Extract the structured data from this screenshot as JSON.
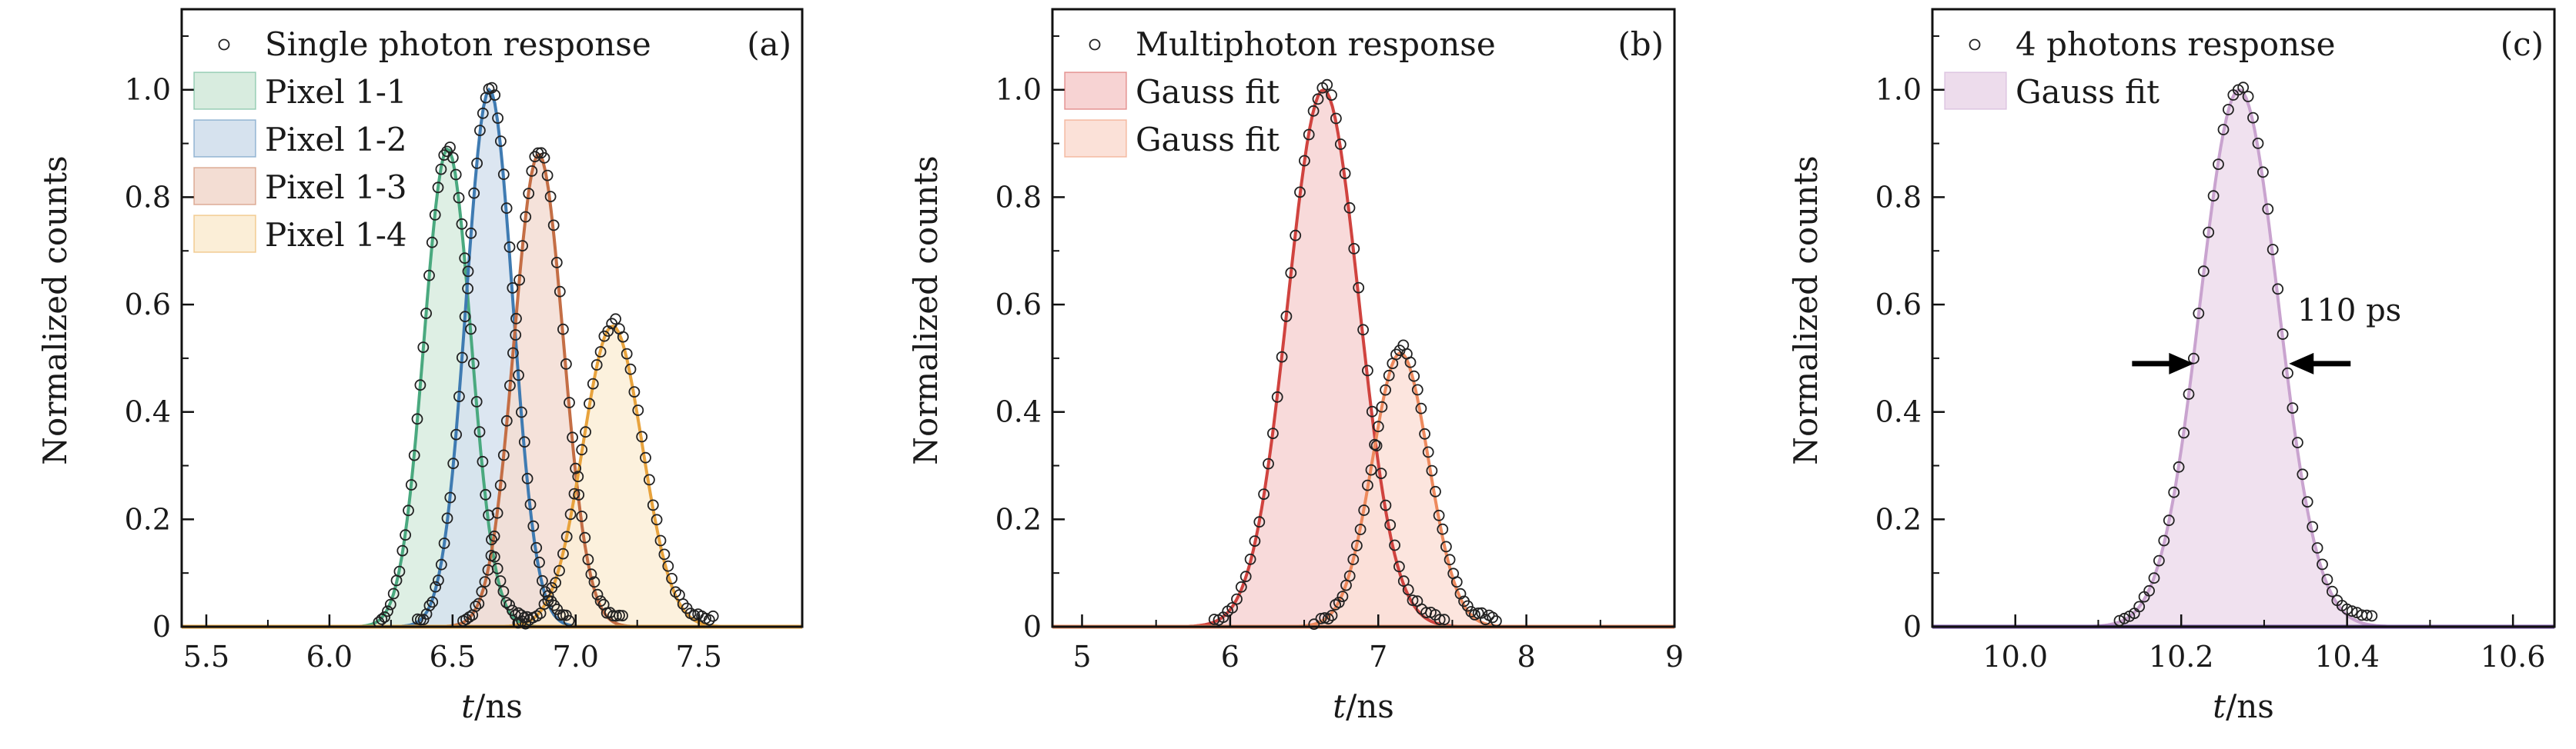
{
  "chart_data": [
    {
      "id": "a",
      "type": "area",
      "panel_label": "(a)",
      "xlabel_italic": "t",
      "xlabel_rest": "/ns",
      "ylabel": "Normalized counts",
      "xlim": [
        5.4,
        7.92
      ],
      "ylim": [
        0,
        1.15
      ],
      "xticks": [
        5.5,
        6.0,
        6.5,
        7.0,
        7.5
      ],
      "xtick_labels": [
        "5.5",
        "6.0",
        "6.5",
        "7.0",
        "7.5"
      ],
      "yticks": [
        0,
        0.2,
        0.4,
        0.6,
        0.8,
        1.0
      ],
      "ytick_labels": [
        "0",
        "0.2",
        "0.4",
        "0.6",
        "0.8",
        "1.0"
      ],
      "legend": [
        "Single photon response",
        "Pixel 1-1",
        "Pixel 1-2",
        "Pixel 1-3",
        "Pixel 1-4"
      ],
      "series": [
        {
          "name": "Pixel 1-1",
          "mu": 6.48,
          "sigma": 0.095,
          "amp": 0.89,
          "fill": "#d8ecdf",
          "line": "#4aa97f"
        },
        {
          "name": "Pixel 1-2",
          "mu": 6.65,
          "sigma": 0.095,
          "amp": 1.0,
          "fill": "#d6e2ee",
          "line": "#3f7bb2"
        },
        {
          "name": "Pixel 1-3",
          "mu": 6.85,
          "sigma": 0.1,
          "amp": 0.88,
          "fill": "#f3ddd3",
          "line": "#c46e45"
        },
        {
          "name": "Pixel 1-4",
          "mu": 7.15,
          "sigma": 0.12,
          "amp": 0.56,
          "fill": "#fbeed7",
          "line": "#e8a33d"
        }
      ],
      "points_series": "Single photon response",
      "baseline_color": "#e8a33d"
    },
    {
      "id": "b",
      "type": "area",
      "panel_label": "(b)",
      "xlabel_italic": "t",
      "xlabel_rest": "/ns",
      "ylabel": "Normalized counts",
      "xlim": [
        4.8,
        9.0
      ],
      "ylim": [
        0,
        1.15
      ],
      "xticks": [
        5,
        6,
        7,
        8,
        9
      ],
      "xtick_labels": [
        "5",
        "6",
        "7",
        "8",
        "9"
      ],
      "yticks": [
        0,
        0.2,
        0.4,
        0.6,
        0.8,
        1.0
      ],
      "ytick_labels": [
        "0",
        "0.2",
        "0.4",
        "0.6",
        "0.8",
        "1.0"
      ],
      "legend": [
        "Multiphoton response",
        "Gauss fit",
        "Gauss fit"
      ],
      "series": [
        {
          "name": "Gauss fit",
          "mu": 6.63,
          "sigma": 0.24,
          "amp": 1.0,
          "fill": "#f7d3d3",
          "line": "#d0433f"
        },
        {
          "name": "Gauss fit",
          "mu": 7.15,
          "sigma": 0.19,
          "amp": 0.51,
          "fill": "#fbe1d8",
          "line": "#ee8a5e"
        }
      ],
      "points_series": "Multiphoton response",
      "baseline_color": "#ee8a5e"
    },
    {
      "id": "c",
      "type": "area",
      "panel_label": "(c)",
      "xlabel_italic": "t",
      "xlabel_rest": "/ns",
      "ylabel": "Normalized counts",
      "xlim": [
        9.9,
        10.65
      ],
      "ylim": [
        0,
        1.15
      ],
      "xticks": [
        10.0,
        10.2,
        10.4,
        10.6
      ],
      "xtick_labels": [
        "10.0",
        "10.2",
        "10.4",
        "10.6"
      ],
      "yticks": [
        0,
        0.2,
        0.4,
        0.6,
        0.8,
        1.0
      ],
      "ytick_labels": [
        "0",
        "0.2",
        "0.4",
        "0.6",
        "0.8",
        "1.0"
      ],
      "legend": [
        "4 photons response",
        "Gauss fit"
      ],
      "series": [
        {
          "name": "Gauss fit",
          "mu": 10.27,
          "sigma": 0.047,
          "amp": 1.0,
          "fill": "#eddcec",
          "line": "#c9a3cf"
        }
      ],
      "points_series": "4 photons response",
      "baseline_color": "#6e4aa0",
      "annotation": {
        "text": "110 ps",
        "x": 10.34,
        "y": 0.57,
        "arrow_y": 0.49,
        "left_tip": 10.215,
        "right_tip": 10.33
      }
    }
  ]
}
